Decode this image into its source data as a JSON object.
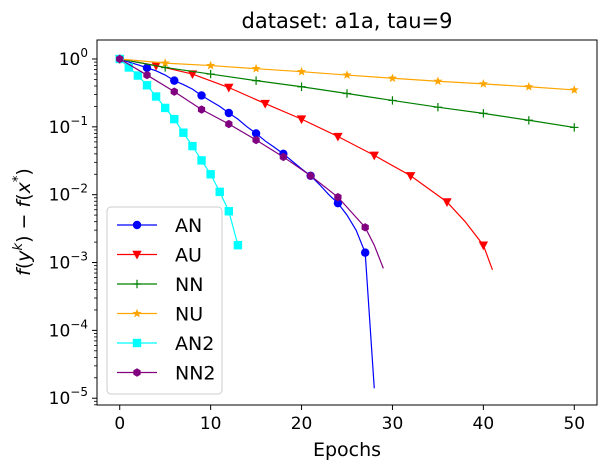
{
  "chart_data": {
    "type": "line",
    "title": "dataset: a1a, tau=9",
    "xlabel": "Epochs",
    "ylabel": "f(y^k) − f(x^*)",
    "xlim": [
      -2.5,
      52.5
    ],
    "ylim_log10": [
      -5.1,
      0.28
    ],
    "yscale": "log",
    "xticks": [
      0,
      10,
      20,
      30,
      40,
      50
    ],
    "xtick_labels": [
      "0",
      "10",
      "20",
      "30",
      "40",
      "50"
    ],
    "yticks_log10": [
      0,
      -1,
      -2,
      -3,
      -4,
      -5
    ],
    "ytick_labels": [
      {
        "base": "10",
        "exp": "0"
      },
      {
        "base": "10",
        "exp": "−1"
      },
      {
        "base": "10",
        "exp": "−2"
      },
      {
        "base": "10",
        "exp": "−3"
      },
      {
        "base": "10",
        "exp": "−4"
      },
      {
        "base": "10",
        "exp": "−5"
      }
    ],
    "legend_position": "lower-left",
    "series": [
      {
        "name": "AN",
        "color": "#0000ff",
        "marker": "circle",
        "x": [
          0,
          1,
          2,
          3,
          4,
          5,
          6,
          7,
          8,
          9,
          10,
          11,
          12,
          13,
          14,
          15,
          16,
          17,
          18,
          19,
          20,
          21,
          22,
          23,
          24,
          25,
          26,
          27,
          28
        ],
        "y": [
          1.0,
          0.9,
          0.82,
          0.74,
          0.67,
          0.58,
          0.48,
          0.42,
          0.36,
          0.29,
          0.24,
          0.2,
          0.16,
          0.13,
          0.1,
          0.08,
          0.062,
          0.05,
          0.04,
          0.031,
          0.024,
          0.019,
          0.014,
          0.01,
          0.0075,
          0.005,
          0.003,
          0.0014,
          1.4e-05
        ],
        "marker_x": [
          0,
          3,
          6,
          9,
          12,
          15,
          18,
          21,
          24,
          27
        ]
      },
      {
        "name": "AU",
        "color": "#ff0000",
        "marker": "triangle-down",
        "x": [
          0,
          4,
          8,
          12,
          16,
          20,
          24,
          28,
          32,
          36,
          38,
          40,
          41
        ],
        "y": [
          1.0,
          0.8,
          0.6,
          0.38,
          0.22,
          0.13,
          0.072,
          0.038,
          0.019,
          0.0078,
          0.004,
          0.0018,
          0.00078
        ],
        "marker_x": [
          0,
          4,
          8,
          12,
          16,
          20,
          24,
          28,
          32,
          36,
          40
        ]
      },
      {
        "name": "NN",
        "color": "#008000",
        "marker": "plus",
        "x": [
          0,
          5,
          10,
          15,
          20,
          25,
          30,
          35,
          40,
          45,
          50
        ],
        "y": [
          1.0,
          0.75,
          0.6,
          0.48,
          0.39,
          0.31,
          0.245,
          0.195,
          0.158,
          0.125,
          0.098
        ],
        "marker_x": [
          0,
          5,
          10,
          15,
          20,
          25,
          30,
          35,
          40,
          45,
          50
        ]
      },
      {
        "name": "NU",
        "color": "#ffa500",
        "marker": "star",
        "x": [
          0,
          5,
          10,
          15,
          20,
          25,
          30,
          35,
          40,
          45,
          50
        ],
        "y": [
          1.0,
          0.87,
          0.8,
          0.72,
          0.65,
          0.58,
          0.52,
          0.47,
          0.43,
          0.39,
          0.35
        ],
        "marker_x": [
          0,
          5,
          10,
          15,
          20,
          25,
          30,
          35,
          40,
          45,
          50
        ]
      },
      {
        "name": "AN2",
        "color": "#00ffff",
        "marker": "square",
        "x": [
          0,
          1,
          2,
          3,
          4,
          5,
          6,
          7,
          8,
          9,
          10,
          11,
          12,
          13
        ],
        "y": [
          1.0,
          0.75,
          0.57,
          0.41,
          0.28,
          0.19,
          0.13,
          0.082,
          0.052,
          0.032,
          0.02,
          0.011,
          0.0057,
          0.0018
        ],
        "marker_x": [
          0,
          1,
          2,
          3,
          4,
          5,
          6,
          7,
          8,
          9,
          10,
          11,
          12,
          13
        ]
      },
      {
        "name": "NN2",
        "color": "#800080",
        "marker": "hexagon",
        "x": [
          0,
          3,
          6,
          9,
          12,
          15,
          18,
          21,
          24,
          27,
          28,
          29
        ],
        "y": [
          1.0,
          0.58,
          0.33,
          0.18,
          0.11,
          0.064,
          0.036,
          0.019,
          0.0092,
          0.0033,
          0.0018,
          0.00082
        ],
        "marker_x": [
          0,
          3,
          6,
          9,
          12,
          15,
          18,
          21,
          24,
          27
        ]
      }
    ]
  }
}
